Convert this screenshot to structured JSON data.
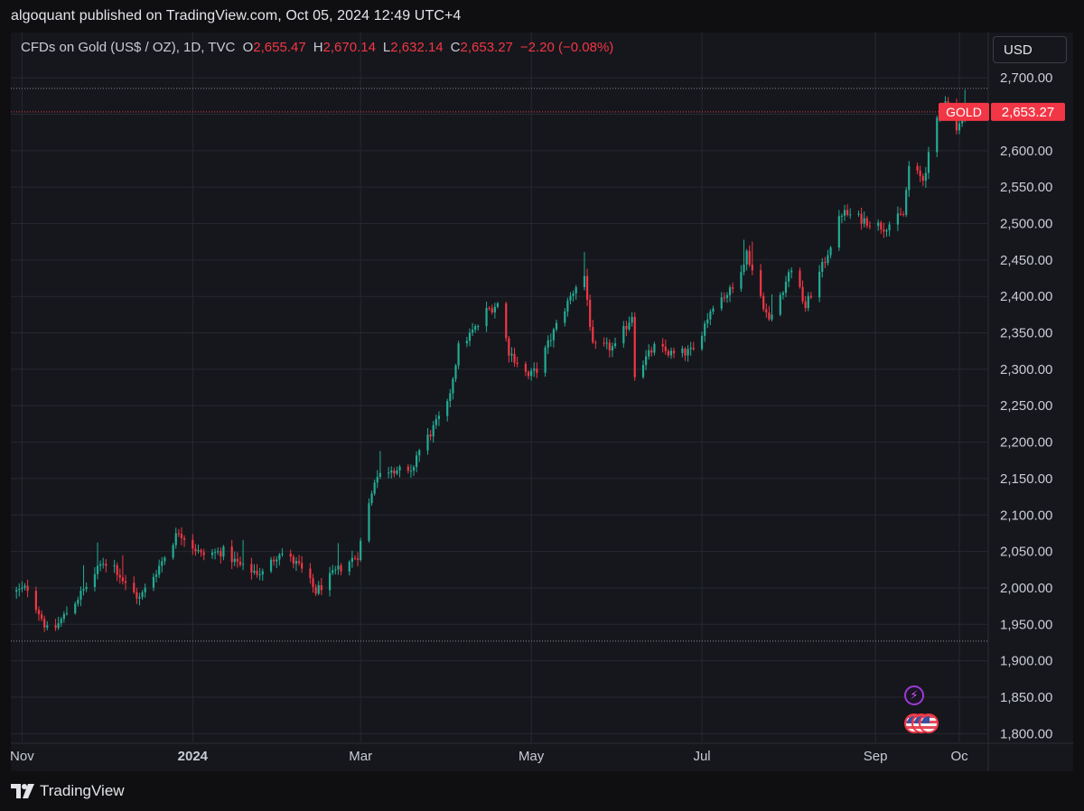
{
  "attribution": "algoquant published on TradingView.com, Oct 05, 2024 12:49 UTC+4",
  "legend": {
    "symbol": "CFDs on Gold (US$ / OZ), 1D, TVC",
    "open_label": "O",
    "open": "2,655.47",
    "high_label": "H",
    "high": "2,670.14",
    "low_label": "L",
    "low": "2,632.14",
    "close_label": "C",
    "close": "2,653.27",
    "change": "−2.20 (−0.08%)"
  },
  "currency": "USD",
  "price_tag": {
    "symbol": "GOLD",
    "price": "2,653.27"
  },
  "footer": {
    "brand": "TradingView"
  },
  "icons": {
    "logo": "tradingview-logo-icon",
    "event": "lightning-icon",
    "country": "us-flag-icon"
  },
  "colors": {
    "up": "#22ab94",
    "down": "#f23645",
    "background": "#16171c",
    "grid": "#262932"
  },
  "chart_data": {
    "type": "candlestick",
    "interval": "1D",
    "y_axis_ticks": [
      "2,700.00",
      "2,650.00",
      "2,600.00",
      "2,550.00",
      "2,500.00",
      "2,450.00",
      "2,400.00",
      "2,350.00",
      "2,300.00",
      "2,250.00",
      "2,200.00",
      "2,150.00",
      "2,100.00",
      "2,050.00",
      "2,000.00",
      "1,950.00",
      "1,900.00",
      "1,850.00",
      "1,800.00"
    ],
    "y_tick_values": [
      2700,
      2650,
      2600,
      2550,
      2500,
      2450,
      2400,
      2350,
      2300,
      2250,
      2200,
      2150,
      2100,
      2050,
      2000,
      1950,
      1900,
      1850,
      1800
    ],
    "ylim": [
      1788,
      2720
    ],
    "x_axis_ticks": [
      "Nov",
      "2024",
      "Mar",
      "May",
      "Jul",
      "Sep",
      "Oc"
    ],
    "x_tick_dates": [
      "2023-11-01",
      "2024-01-01",
      "2024-03-01",
      "2024-05-01",
      "2024-07-01",
      "2024-09-01",
      "2024-10-01"
    ],
    "x_range": [
      "2023-10-28",
      "2024-10-11"
    ],
    "horizontal_levels": [
      2685.5,
      1927
    ],
    "last_price": 2653.27,
    "anchors": [
      [
        "2023-10-30",
        1995
      ],
      [
        "2023-11-03",
        2000
      ],
      [
        "2023-11-10",
        1942
      ],
      [
        "2023-11-13",
        1946
      ],
      [
        "2023-11-24",
        2002
      ],
      [
        "2023-11-30",
        2036
      ],
      [
        "2023-12-04",
        2030
      ],
      [
        "2023-12-08",
        2004
      ],
      [
        "2023-12-13",
        1985
      ],
      [
        "2023-12-20",
        2030
      ],
      [
        "2023-12-27",
        2078
      ],
      [
        "2024-01-04",
        2045
      ],
      [
        "2024-01-12",
        2050
      ],
      [
        "2024-01-19",
        2027
      ],
      [
        "2024-01-26",
        2020
      ],
      [
        "2024-02-01",
        2050
      ],
      [
        "2024-02-08",
        2030
      ],
      [
        "2024-02-14",
        1995
      ],
      [
        "2024-02-22",
        2025
      ],
      [
        "2024-02-29",
        2045
      ],
      [
        "2024-03-06",
        2150
      ],
      [
        "2024-03-12",
        2165
      ],
      [
        "2024-03-19",
        2155
      ],
      [
        "2024-03-21",
        2182
      ],
      [
        "2024-04-01",
        2250
      ],
      [
        "2024-04-05",
        2330
      ],
      [
        "2024-04-12",
        2360
      ],
      [
        "2024-04-15",
        2380
      ],
      [
        "2024-04-19",
        2390
      ],
      [
        "2024-04-23",
        2325
      ],
      [
        "2024-04-30",
        2290
      ],
      [
        "2024-05-03",
        2300
      ],
      [
        "2024-05-10",
        2360
      ],
      [
        "2024-05-17",
        2415
      ],
      [
        "2024-05-20",
        2428
      ],
      [
        "2024-05-23",
        2330
      ],
      [
        "2024-05-31",
        2330
      ],
      [
        "2024-06-06",
        2375
      ],
      [
        "2024-06-07",
        2295
      ],
      [
        "2024-06-14",
        2330
      ],
      [
        "2024-06-21",
        2320
      ],
      [
        "2024-06-28",
        2325
      ],
      [
        "2024-07-05",
        2390
      ],
      [
        "2024-07-12",
        2410
      ],
      [
        "2024-07-17",
        2460
      ],
      [
        "2024-07-25",
        2365
      ],
      [
        "2024-08-02",
        2440
      ],
      [
        "2024-08-07",
        2385
      ],
      [
        "2024-08-14",
        2450
      ],
      [
        "2024-08-20",
        2515
      ],
      [
        "2024-08-28",
        2505
      ],
      [
        "2024-09-04",
        2495
      ],
      [
        "2024-09-11",
        2512
      ],
      [
        "2024-09-13",
        2578
      ],
      [
        "2024-09-18",
        2560
      ],
      [
        "2024-09-24",
        2655
      ],
      [
        "2024-09-26",
        2672
      ],
      [
        "2024-09-30",
        2634
      ],
      [
        "2024-10-04",
        2653.27
      ]
    ]
  }
}
